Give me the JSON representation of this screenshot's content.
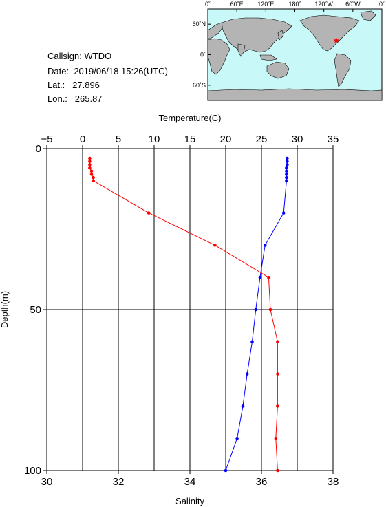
{
  "station": {
    "callsign_label": "Callsign:",
    "callsign": "WTDO",
    "date_label": "Date:",
    "date": "2019/06/18 15:26(UTC)",
    "lat_label": "Lat.:",
    "lat": "27.896",
    "lon_label": "Lon.:",
    "lon": "265.87"
  },
  "map": {
    "top_ticks": [
      "0˚",
      "60˚E",
      "120˚E",
      "180˚",
      "120˚W",
      "60˚W",
      "0˚"
    ],
    "left_ticks": [
      "60˚N",
      "0˚",
      "60˚S"
    ],
    "ocean_color": "#c8f8f8",
    "land_color": "#b4b4b4",
    "marker_color": "#ff0000",
    "marker_icon": "star-icon"
  },
  "chart_data": {
    "type": "line",
    "title": "",
    "top_axis_label": "Temperature(C)",
    "bottom_axis_label": "Salinity",
    "ylabel": "Depth(m)",
    "temperature_range": [
      -5,
      35
    ],
    "temperature_ticks": [
      -5,
      0,
      5,
      10,
      15,
      20,
      25,
      30,
      35
    ],
    "salinity_range": [
      30,
      38
    ],
    "salinity_ticks": [
      30,
      32,
      34,
      36,
      38
    ],
    "depth_range": [
      0,
      100
    ],
    "depth_ticks": [
      0,
      50,
      100
    ],
    "y_inverted": true,
    "grid": true,
    "series": [
      {
        "color": "#0000ff",
        "axis": "temperature",
        "points": [
          {
            "depth": 3,
            "value": 28.6
          },
          {
            "depth": 4,
            "value": 28.6
          },
          {
            "depth": 5,
            "value": 28.6
          },
          {
            "depth": 6,
            "value": 28.5
          },
          {
            "depth": 7,
            "value": 28.5
          },
          {
            "depth": 8,
            "value": 28.5
          },
          {
            "depth": 9,
            "value": 28.5
          },
          {
            "depth": 10,
            "value": 28.5
          },
          {
            "depth": 20,
            "value": 28.1
          },
          {
            "depth": 30,
            "value": 25.5
          },
          {
            "depth": 40,
            "value": 24.8
          },
          {
            "depth": 50,
            "value": 24.2
          },
          {
            "depth": 60,
            "value": 23.7
          },
          {
            "depth": 70,
            "value": 23.0
          },
          {
            "depth": 80,
            "value": 22.4
          },
          {
            "depth": 90,
            "value": 21.6
          },
          {
            "depth": 100,
            "value": 20.0
          }
        ]
      },
      {
        "color": "#ff0000",
        "axis": "salinity",
        "points": [
          {
            "depth": 3,
            "value": 31.2
          },
          {
            "depth": 4,
            "value": 31.2
          },
          {
            "depth": 5,
            "value": 31.2
          },
          {
            "depth": 6,
            "value": 31.2
          },
          {
            "depth": 7,
            "value": 31.25
          },
          {
            "depth": 8,
            "value": 31.25
          },
          {
            "depth": 9,
            "value": 31.3
          },
          {
            "depth": 10,
            "value": 31.3
          },
          {
            "depth": 20,
            "value": 32.85
          },
          {
            "depth": 30,
            "value": 34.7
          },
          {
            "depth": 40,
            "value": 36.2
          },
          {
            "depth": 50,
            "value": 36.25
          },
          {
            "depth": 60,
            "value": 36.45
          },
          {
            "depth": 70,
            "value": 36.45
          },
          {
            "depth": 80,
            "value": 36.45
          },
          {
            "depth": 90,
            "value": 36.4
          },
          {
            "depth": 100,
            "value": 36.45
          }
        ]
      }
    ]
  }
}
